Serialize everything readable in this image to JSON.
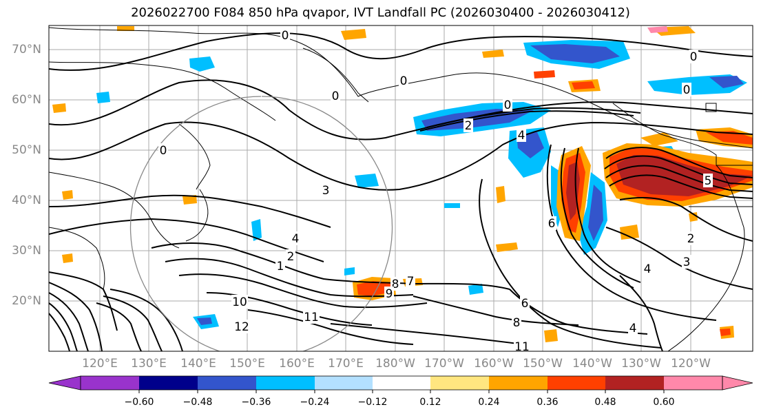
{
  "title": "2026022700 F084 850 hPa qvapor, IVT Landfall PC (2026030400 - 2026030412)",
  "lat_labels": [
    "70°N",
    "60°N",
    "50°N",
    "40°N",
    "30°N",
    "20°N"
  ],
  "lon_labels": [
    "120°E",
    "130°E",
    "140°E",
    "150°E",
    "160°E",
    "170°E",
    "180°W",
    "170°W",
    "160°W",
    "150°W",
    "140°W",
    "130°W",
    "120°W"
  ],
  "colorbar": {
    "ticks": [
      "−0.60",
      "−0.48",
      "−0.36",
      "−0.24",
      "−0.12",
      "0.12",
      "0.24",
      "0.36",
      "0.48",
      "0.60"
    ],
    "colors": [
      "#9933cc",
      "#00008b",
      "#3355cc",
      "#00bfff",
      "#b3e0ff",
      "#ffffff",
      "#ffe680",
      "#ffa500",
      "#ff4000",
      "#b22222",
      "#ff88aa"
    ]
  },
  "contour_labels": [
    "0",
    "0",
    "0",
    "0",
    "0",
    "0",
    "0",
    "2",
    "4",
    "3",
    "4",
    "2",
    "1",
    "5",
    "6",
    "7",
    "8",
    "9",
    "10",
    "11",
    "12",
    "2",
    "3",
    "4",
    "6",
    "8",
    "4",
    "11"
  ]
}
